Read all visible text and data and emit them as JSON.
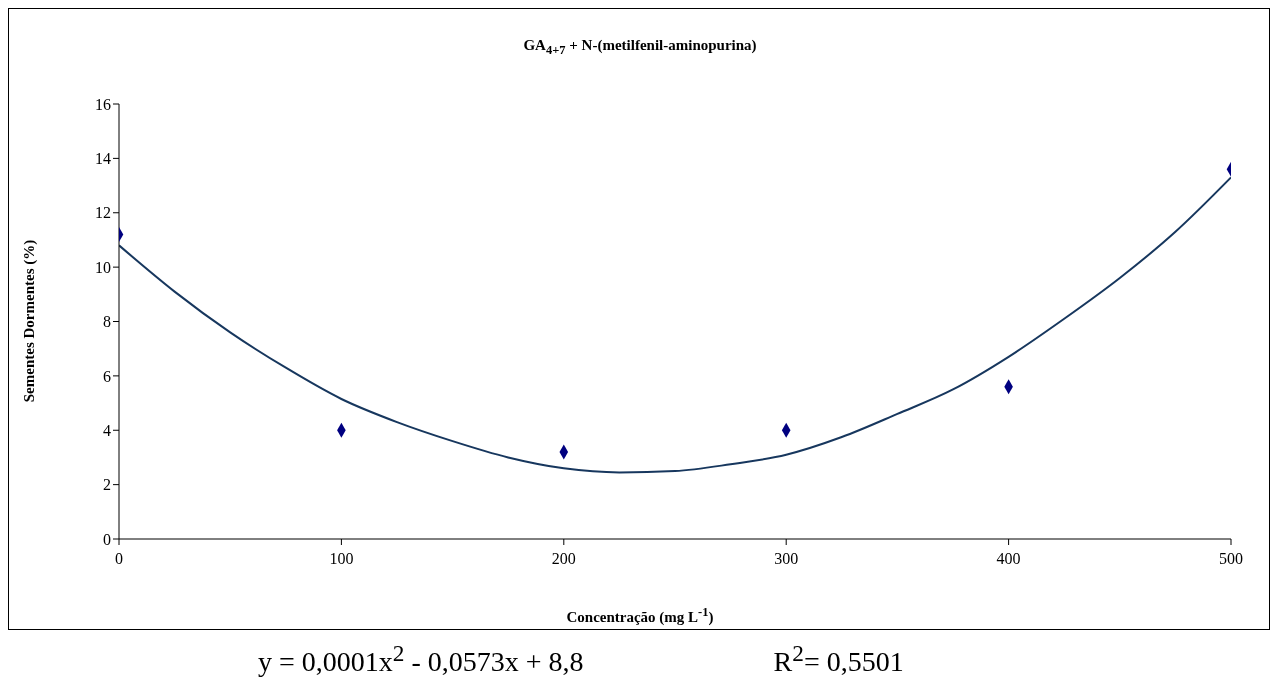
{
  "chart_data": {
    "type": "scatter",
    "title": "GA$_{4+7}$ + N-(metilfenil-aminopurina)",
    "xlabel": "Concentração (mg L$^{-1}$)",
    "ylabel": "Sementes Dormentes (%)",
    "annotations": [
      "y = 0,0001x$^{2}$ - 0,0573x + 8,8",
      "R$^{2}$= 0,5501"
    ],
    "x": [
      0,
      100,
      200,
      300,
      400,
      500
    ],
    "series": [
      {
        "color": "#000080",
        "marker": "diamond",
        "values": [
          11.2,
          4.0,
          3.2,
          4.0,
          5.6,
          13.6
        ]
      },
      {
        "type": "line",
        "color": "#17375e",
        "marker": "none",
        "line_style": "solid",
        "x": [
          0,
          25,
          50,
          75,
          100,
          125,
          150,
          175,
          200,
          225,
          250,
          275,
          300,
          325,
          350,
          375,
          400,
          425,
          450,
          475,
          500
        ],
        "values": [
          10.8,
          9.1,
          7.6,
          6.3,
          5.15,
          4.3,
          3.6,
          3.0,
          2.6,
          2.45,
          2.5,
          2.75,
          3.1,
          3.75,
          4.6,
          5.5,
          6.7,
          8.1,
          9.6,
          11.3,
          13.3
        ]
      }
    ],
    "xlim": [
      0,
      500
    ],
    "xticks": [
      0,
      100,
      200,
      300,
      400,
      500
    ],
    "ylim": [
      0,
      16
    ],
    "yticks": [
      0,
      2,
      4,
      6,
      8,
      10,
      12,
      14,
      16
    ]
  }
}
